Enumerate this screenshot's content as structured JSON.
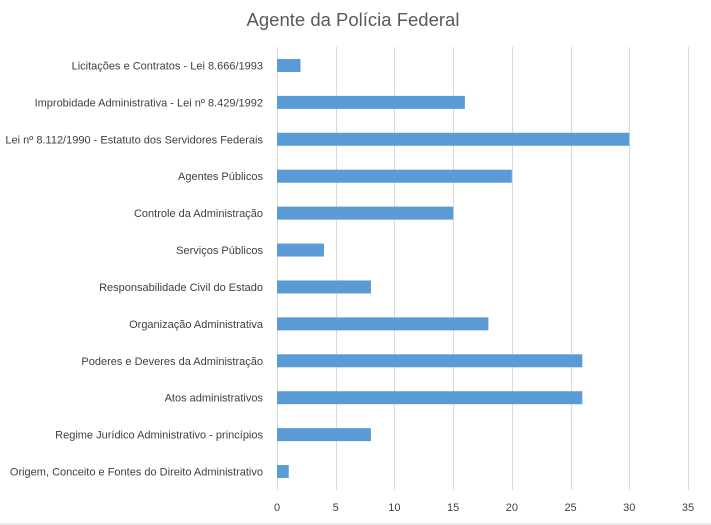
{
  "chart_data": {
    "type": "bar",
    "orientation": "horizontal",
    "title": "Agente da Polícia Federal",
    "categories": [
      "Licitações e Contratos - Lei 8.666/1993",
      "Improbidade Administrativa - Lei nº 8.429/1992",
      "Lei nº 8.112/1990 - Estatuto dos Servidores Federais",
      "Agentes Públicos",
      "Controle da Administração",
      "Serviços Públicos",
      "Responsabilidade Civil do Estado",
      "Organização Administrativa",
      "Poderes e Deveres da Administração",
      "Atos administrativos",
      "Regime Jurídico Administrativo - princípios",
      "Origem, Conceito e Fontes do Direito Administrativo"
    ],
    "values": [
      2,
      16,
      30,
      20,
      15,
      4,
      8,
      18,
      26,
      26,
      8,
      1
    ],
    "xlim": [
      0,
      35
    ],
    "xticks": [
      "0",
      "5",
      "10",
      "15",
      "20",
      "25",
      "30",
      "35"
    ],
    "xtick_values": [
      0,
      5,
      10,
      15,
      20,
      25,
      30,
      35
    ],
    "grid": true,
    "legend": "none",
    "bar_color": "#5b9bd5"
  }
}
